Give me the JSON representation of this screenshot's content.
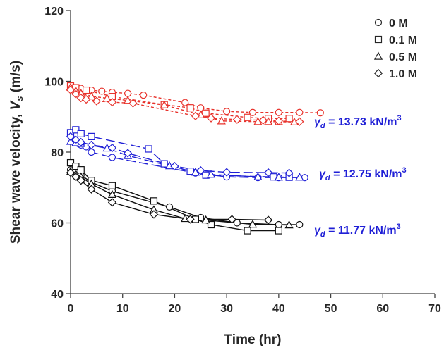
{
  "chart_data": {
    "type": "line",
    "xlabel": "Time (hr)",
    "ylabel_main": "Shear wave velocity, ",
    "ylabel_sym": "V",
    "ylabel_sub": "s",
    "ylabel_unit": " (m/s)",
    "xlim": [
      0,
      70
    ],
    "ylim": [
      40,
      120
    ],
    "x_ticks": [
      "0",
      "10",
      "20",
      "30",
      "40",
      "50",
      "60",
      "70"
    ],
    "y_ticks": [
      "40",
      "60",
      "80",
      "100",
      "120"
    ],
    "grid": false,
    "legend_position": "top-right",
    "legend": [
      {
        "marker": "circle",
        "label": "0 M"
      },
      {
        "marker": "square",
        "label": "0.1 M"
      },
      {
        "marker": "triangle",
        "label": "0.5 M"
      },
      {
        "marker": "diamond",
        "label": "1.0 M"
      }
    ],
    "groups": [
      {
        "label_prefix": "γ",
        "label_sub": "d",
        "label_eq": " = 13.73 kN/m",
        "label_sup": "3",
        "color": "#e8322b",
        "line_style": "short-dash",
        "series": [
          {
            "marker": "circle",
            "points": [
              [
                0,
                98.8
              ],
              [
                2,
                98
              ],
              [
                4,
                97.5
              ],
              [
                6,
                97.2
              ],
              [
                8,
                96.9
              ],
              [
                11,
                96.6
              ],
              [
                14,
                96.1
              ],
              [
                22,
                94
              ],
              [
                25,
                92.5
              ],
              [
                30,
                91.5
              ],
              [
                35,
                91.2
              ],
              [
                40,
                91.2
              ],
              [
                44,
                91.2
              ],
              [
                48,
                91.1
              ]
            ]
          },
          {
            "marker": "square",
            "points": [
              [
                0,
                98.7
              ],
              [
                1,
                98.2
              ],
              [
                3,
                97.5
              ],
              [
                8,
                95.7
              ],
              [
                18,
                93.4
              ],
              [
                23,
                92.5
              ],
              [
                26,
                91
              ],
              [
                34,
                89.8
              ],
              [
                38,
                89.5
              ],
              [
                42,
                89.5
              ]
            ]
          },
          {
            "marker": "triangle",
            "points": [
              [
                0,
                98.3
              ],
              [
                1,
                97.3
              ],
              [
                2,
                96.6
              ],
              [
                4,
                95.8
              ],
              [
                7,
                95.2
              ],
              [
                11,
                94.6
              ],
              [
                18,
                93.3
              ],
              [
                25,
                90.5
              ],
              [
                29,
                88.8
              ],
              [
                36,
                88.6
              ],
              [
                38,
                88.6
              ],
              [
                40,
                88.6
              ],
              [
                43,
                88.5
              ]
            ]
          },
          {
            "marker": "diamond",
            "points": [
              [
                0,
                97.6
              ],
              [
                1,
                96.4
              ],
              [
                2,
                95.3
              ],
              [
                3,
                94.9
              ],
              [
                5,
                94.4
              ],
              [
                8,
                94.1
              ],
              [
                12,
                93.8
              ],
              [
                24,
                90.2
              ],
              [
                27,
                89.6
              ],
              [
                32,
                89.2
              ],
              [
                37,
                89
              ],
              [
                40,
                88.8
              ],
              [
                44,
                88.6
              ]
            ]
          }
        ]
      },
      {
        "label_prefix": "γ",
        "label_sub": "d",
        "label_eq": " = 12.75 kN/m",
        "label_sup": "3",
        "color": "#1f1fd6",
        "line_style": "long-dash",
        "series": [
          {
            "marker": "circle",
            "points": [
              [
                0,
                84.8
              ],
              [
                1,
                83
              ],
              [
                2,
                82
              ],
              [
                3,
                81.5
              ],
              [
                4,
                80
              ],
              [
                8,
                78.5
              ],
              [
                24,
                74.1
              ],
              [
                30,
                73
              ],
              [
                36,
                72.8
              ],
              [
                40,
                72.8
              ],
              [
                45,
                72.8
              ]
            ]
          },
          {
            "marker": "square",
            "points": [
              [
                0,
                85.5
              ],
              [
                1,
                86.3
              ],
              [
                2,
                85.2
              ],
              [
                4,
                84.4
              ],
              [
                15,
                80.9
              ],
              [
                18,
                76.7
              ],
              [
                23,
                74.6
              ],
              [
                26,
                73.5
              ],
              [
                39,
                73
              ],
              [
                42,
                72.9
              ]
            ]
          },
          {
            "marker": "triangle",
            "points": [
              [
                0,
                83
              ],
              [
                1,
                82.6
              ],
              [
                2,
                82.4
              ],
              [
                7,
                81.1
              ],
              [
                11,
                79
              ],
              [
                19,
                76.1
              ],
              [
                24,
                74.3
              ],
              [
                27,
                73.7
              ],
              [
                36,
                73
              ],
              [
                40,
                72.9
              ],
              [
                44,
                72.9
              ]
            ]
          },
          {
            "marker": "diamond",
            "points": [
              [
                0,
                84.4
              ],
              [
                1,
                83.5
              ],
              [
                2,
                82.8
              ],
              [
                4,
                82
              ],
              [
                8,
                81.2
              ],
              [
                11,
                79.7
              ],
              [
                20,
                76
              ],
              [
                25,
                74.8
              ],
              [
                30,
                74.3
              ],
              [
                38,
                74.2
              ],
              [
                42,
                74.1
              ]
            ]
          }
        ]
      },
      {
        "label_prefix": "γ",
        "label_sub": "d",
        "label_eq": " = 11.77 kN/m",
        "label_sup": "3",
        "color": "#111111",
        "line_style": "solid",
        "series": [
          {
            "marker": "circle",
            "points": [
              [
                0,
                75
              ],
              [
                1,
                74.5
              ],
              [
                2,
                73.5
              ],
              [
                4,
                71.5
              ],
              [
                8,
                69
              ],
              [
                19,
                64.5
              ],
              [
                25,
                61.5
              ],
              [
                32,
                60
              ],
              [
                40,
                59.5
              ],
              [
                44,
                59.5
              ]
            ]
          },
          {
            "marker": "square",
            "points": [
              [
                0,
                77
              ],
              [
                1,
                76
              ],
              [
                2,
                75
              ],
              [
                4,
                72
              ],
              [
                8,
                70.5
              ],
              [
                16,
                66.2
              ],
              [
                24,
                61
              ],
              [
                27,
                59.5
              ],
              [
                34,
                57.8
              ],
              [
                40,
                57.8
              ]
            ]
          },
          {
            "marker": "triangle",
            "points": [
              [
                0,
                74.5
              ],
              [
                1,
                73.8
              ],
              [
                2,
                73
              ],
              [
                4,
                71
              ],
              [
                8,
                68
              ],
              [
                16,
                63.7
              ],
              [
                22,
                61.2
              ],
              [
                26,
                60.8
              ],
              [
                35,
                59.6
              ],
              [
                42,
                59.4
              ]
            ]
          },
          {
            "marker": "diamond",
            "points": [
              [
                0,
                74.2
              ],
              [
                1,
                73
              ],
              [
                2,
                72
              ],
              [
                4,
                69.5
              ],
              [
                8,
                65.8
              ],
              [
                16,
                62.4
              ],
              [
                23,
                61
              ],
              [
                31,
                61
              ],
              [
                38,
                60.8
              ]
            ]
          }
        ]
      }
    ]
  }
}
